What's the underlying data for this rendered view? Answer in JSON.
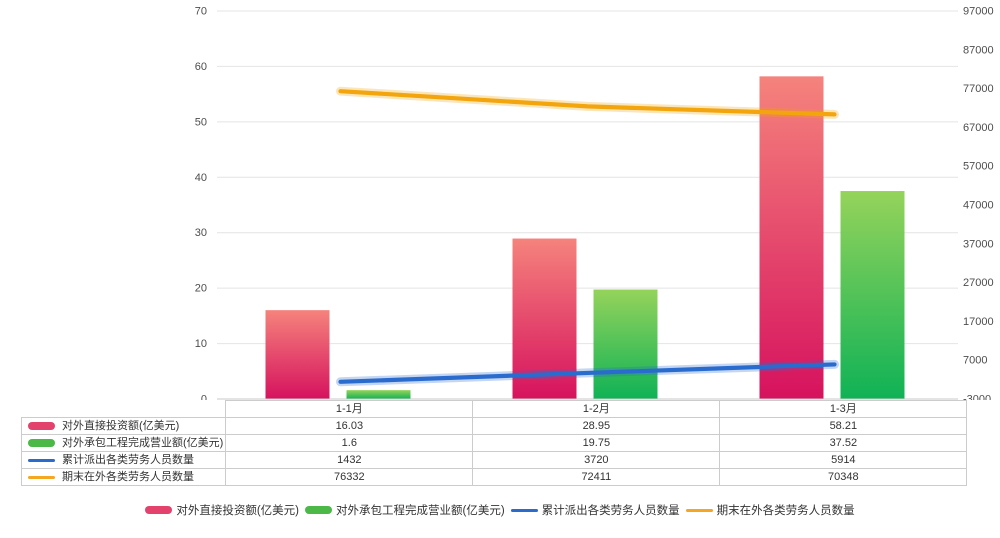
{
  "chart_data": {
    "type": "combo-bar-line",
    "title": "",
    "categories": [
      "1-1月",
      "1-2月",
      "1-3月"
    ],
    "series": [
      {
        "name": "对外直接投资额(亿美元)",
        "type": "bar",
        "axis": "left",
        "values": [
          16.03,
          28.95,
          58.21
        ],
        "gradient_top": "#f5837c",
        "gradient_bottom": "#d6125e",
        "swatch_color": "#e2426b",
        "marker": "pill"
      },
      {
        "name": "对外承包工程完成营业额(亿美元)",
        "type": "bar",
        "axis": "left",
        "values": [
          1.6,
          19.75,
          37.52
        ],
        "gradient_top": "#95d35b",
        "gradient_bottom": "#0fb256",
        "swatch_color": "#4bb848",
        "marker": "pill"
      },
      {
        "name": "累计派出各类劳务人员数量",
        "type": "line",
        "axis": "right",
        "values": [
          1432,
          3720,
          5914
        ],
        "color": "#2a6bce",
        "swatch_color": "#2a6bce",
        "marker": "line"
      },
      {
        "name": "期末在外各类劳务人员数量",
        "type": "line",
        "axis": "right",
        "values": [
          76332,
          72411,
          70348
        ],
        "color": "#f2a50c",
        "swatch_color": "#f5a623",
        "marker": "line"
      }
    ],
    "left_axis": {
      "min": 0,
      "max": 70,
      "tick_step": 10,
      "tick_labels": [
        "0",
        "10",
        "20",
        "30",
        "40",
        "50",
        "60",
        "70"
      ]
    },
    "right_axis": {
      "min": -3000,
      "max": 97000,
      "tick_step": 10000,
      "tick_labels": [
        "-3000",
        "7000",
        "17000",
        "27000",
        "37000",
        "47000",
        "57000",
        "67000",
        "77000",
        "87000",
        "97000"
      ]
    },
    "grid": true,
    "legend_position": "bottom",
    "table": {
      "header": [
        "",
        "1-1月",
        "1-2月",
        "1-3月"
      ],
      "rows": [
        {
          "label": "对外直接投资额(亿美元)",
          "values": [
            "16.03",
            "28.95",
            "58.21"
          ]
        },
        {
          "label": "对外承包工程完成营业额(亿美元)",
          "values": [
            "1.6",
            "19.75",
            "37.52"
          ]
        },
        {
          "label": "累计派出各类劳务人员数量",
          "values": [
            "1432",
            "3720",
            "5914"
          ]
        },
        {
          "label": "期末在外各类劳务人员数量",
          "values": [
            "76332",
            "72411",
            "70348"
          ]
        }
      ]
    },
    "colors": {
      "grid_line": "#e4e4e4",
      "axis_line": "#c9c9c9",
      "table_border": "#cccccc",
      "text": "#333333"
    }
  }
}
